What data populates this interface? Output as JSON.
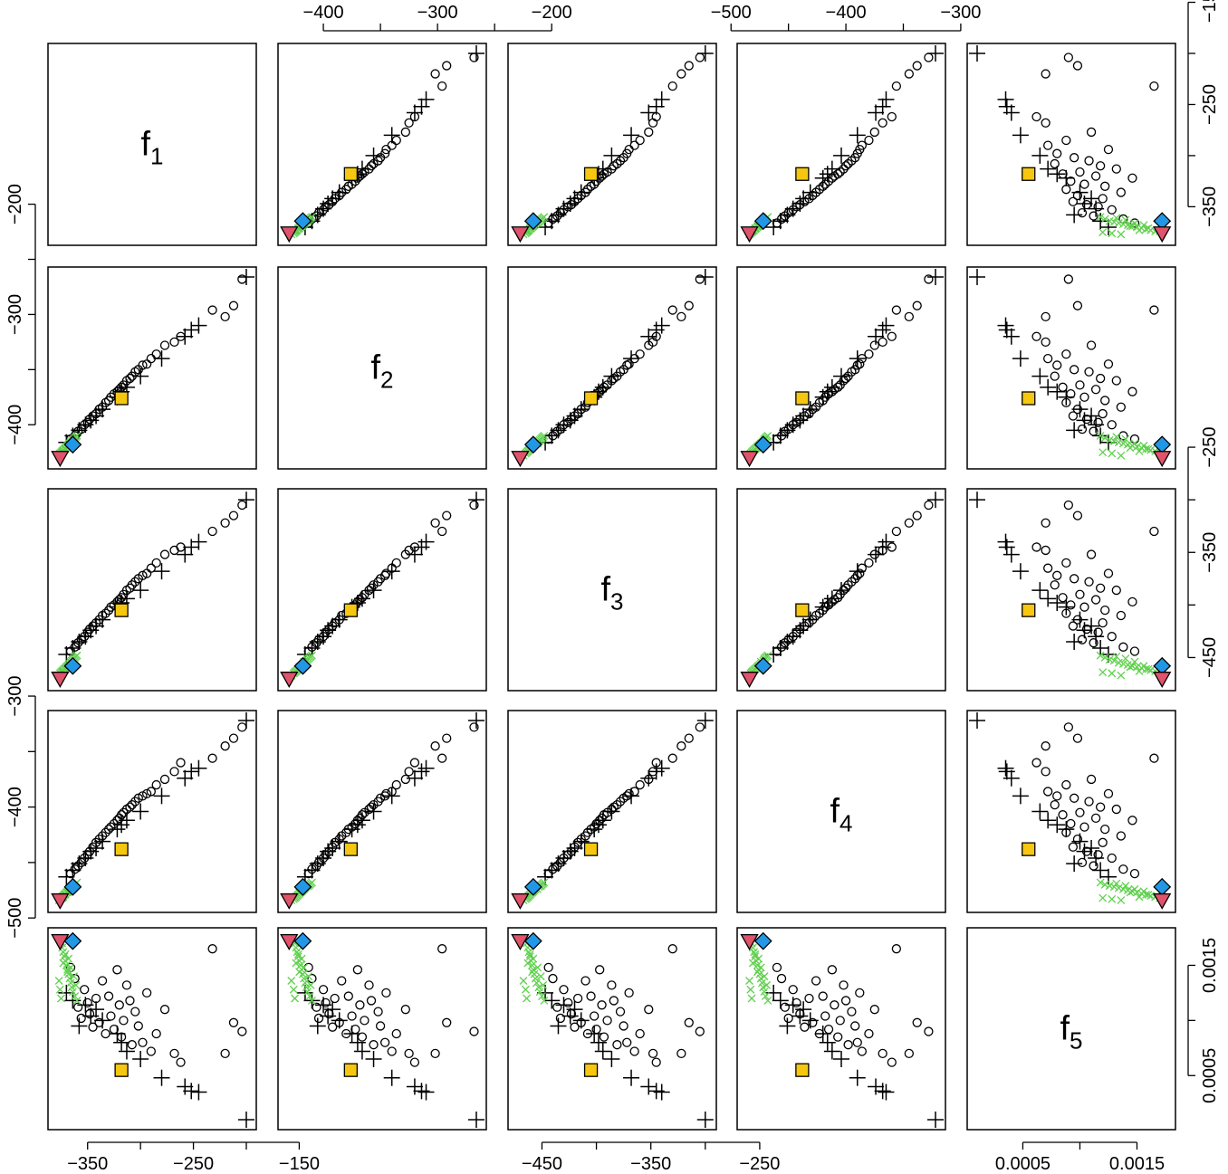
{
  "colors": {
    "frame": "#000000",
    "circle": "#000000",
    "plus": "#000000",
    "cross": "#61D04F",
    "square": "#F5C710",
    "diamond": "#2297E6",
    "triangle": "#DF536B"
  },
  "chart_data": {
    "type": "scatter",
    "variables": [
      {
        "name": "f",
        "sub": "1",
        "range": [
          -378,
          -200
        ],
        "ticks": [
          -350,
          -250,
          -150
        ],
        "tick_labels": [
          "−350",
          "−250",
          "−150"
        ],
        "ticks_minor": [
          -300,
          -200
        ]
      },
      {
        "name": "f",
        "sub": "2",
        "range": [
          -431,
          -266
        ],
        "ticks": [
          -400,
          -300,
          -200
        ],
        "tick_labels": [
          "−400",
          "−300",
          "−200"
        ],
        "ticks_minor": [
          -350,
          -250
        ]
      },
      {
        "name": "f",
        "sub": "3",
        "range": [
          -472,
          -299
        ],
        "ticks": [
          -450,
          -350,
          -250
        ],
        "tick_labels": [
          "−450",
          "−350",
          "−250"
        ],
        "ticks_minor": [
          -400,
          -300
        ]
      },
      {
        "name": "f",
        "sub": "4",
        "range": [
          -486,
          -322
        ],
        "ticks": [
          -500,
          -400,
          -300
        ],
        "tick_labels": [
          "−500",
          "−400",
          "−300"
        ],
        "ticks_minor": [
          -450,
          -350
        ]
      },
      {
        "name": "f",
        "sub": "5",
        "range": [
          0.0001,
          0.00175
        ],
        "ticks": [
          0.0005,
          0.0015
        ],
        "tick_labels": [
          "0.0005",
          "0.0015"
        ],
        "ticks_minor": [
          0.001
        ]
      }
    ],
    "x_axis_bottom": [
      0,
      2,
      4
    ],
    "x_axis_top": [
      1,
      3
    ],
    "y_axis_left": [
      1,
      3
    ],
    "y_axis_right": [
      0,
      2,
      4
    ],
    "series": [
      {
        "marker": "circle",
        "points": [
          [
            -204,
            -268,
            -305,
            -328,
            0.0009
          ],
          [
            -212,
            -292,
            -315,
            -338,
            0.00098
          ],
          [
            -220,
            -302,
            -322,
            -345,
            0.0007
          ],
          [
            -232,
            -296,
            -330,
            -356,
            0.00165
          ],
          [
            -262,
            -320,
            -345,
            -360,
            0.00062
          ],
          [
            -268,
            -325,
            -348,
            -368,
            0.0007
          ],
          [
            -277,
            -328,
            -352,
            -375,
            0.0011
          ],
          [
            -285,
            -336,
            -360,
            -380,
            0.00088
          ],
          [
            -290,
            -340,
            -365,
            -386,
            0.00072
          ],
          [
            -294,
            -345,
            -370,
            -388,
            0.00125
          ],
          [
            -298,
            -346,
            -372,
            -390,
            0.0008
          ],
          [
            -302,
            -350,
            -375,
            -392,
            0.00095
          ],
          [
            -305,
            -352,
            -378,
            -395,
            0.00108
          ],
          [
            -308,
            -356,
            -381,
            -398,
            0.00078
          ],
          [
            -310,
            -358,
            -384,
            -400,
            0.00118
          ],
          [
            -313,
            -360,
            -386,
            -402,
            0.00132
          ],
          [
            -316,
            -364,
            -390,
            -405,
            0.001
          ],
          [
            -318,
            -366,
            -393,
            -407,
            0.00085
          ],
          [
            -320,
            -368,
            -395,
            -410,
            0.00114
          ],
          [
            -322,
            -370,
            -397,
            -412,
            0.00146
          ],
          [
            -325,
            -372,
            -400,
            -415,
            0.00092
          ],
          [
            -328,
            -375,
            -402,
            -418,
            0.00104
          ],
          [
            -330,
            -378,
            -405,
            -420,
            0.00122
          ],
          [
            -333,
            -380,
            -408,
            -423,
            0.00088
          ],
          [
            -336,
            -384,
            -410,
            -426,
            0.00136
          ],
          [
            -339,
            -386,
            -414,
            -429,
            0.00098
          ],
          [
            -342,
            -390,
            -417,
            -432,
            0.0012
          ],
          [
            -345,
            -392,
            -420,
            -436,
            0.00094
          ],
          [
            -348,
            -395,
            -423,
            -440,
            0.00106
          ],
          [
            -350,
            -398,
            -426,
            -443,
            0.00116
          ],
          [
            -353,
            -400,
            -430,
            -446,
            0.00128
          ],
          [
            -356,
            -404,
            -433,
            -450,
            0.00102
          ],
          [
            -359,
            -406,
            -436,
            -453,
            0.00112
          ],
          [
            -362,
            -410,
            -440,
            -456,
            0.00138
          ],
          [
            -366,
            -413,
            -444,
            -460,
            0.00148
          ]
        ]
      },
      {
        "marker": "plus",
        "points": [
          [
            -200,
            -266,
            -300,
            -322,
            0.0001
          ],
          [
            -245,
            -310,
            -340,
            -365,
            0.00035
          ],
          [
            -252,
            -314,
            -345,
            -368,
            0.00036
          ],
          [
            -258,
            -320,
            -352,
            -374,
            0.0004
          ],
          [
            -280,
            -340,
            -368,
            -390,
            0.00048
          ],
          [
            -300,
            -356,
            -386,
            -404,
            0.00065
          ],
          [
            -313,
            -366,
            -394,
            -412,
            0.00072
          ],
          [
            -318,
            -370,
            -398,
            -416,
            0.0008
          ],
          [
            -322,
            -375,
            -402,
            -420,
            0.00088
          ],
          [
            -336,
            -386,
            -414,
            -431,
            0.001
          ],
          [
            -342,
            -392,
            -420,
            -437,
            0.0011
          ],
          [
            -347,
            -396,
            -424,
            -440,
            0.00104
          ],
          [
            -352,
            -400,
            -430,
            -446,
            0.00114
          ],
          [
            -358,
            -405,
            -435,
            -451,
            0.00095
          ],
          [
            -364,
            -410,
            -441,
            -457,
            0.00118
          ],
          [
            -370,
            -416,
            -447,
            -463,
            0.00125
          ]
        ]
      },
      {
        "marker": "cross",
        "points": [
          [
            -360,
            -410,
            -448,
            -468,
            0.00118
          ],
          [
            -362,
            -412,
            -450,
            -470,
            0.00122
          ],
          [
            -364,
            -414,
            -452,
            -471,
            0.00126
          ],
          [
            -365,
            -415,
            -453,
            -472,
            0.0013
          ],
          [
            -366,
            -416,
            -455,
            -473,
            0.00134
          ],
          [
            -367,
            -417,
            -456,
            -474,
            0.00138
          ],
          [
            -368,
            -418,
            -457,
            -475,
            0.00142
          ],
          [
            -369,
            -419,
            -458,
            -476,
            0.00146
          ],
          [
            -370,
            -420,
            -459,
            -477,
            0.0015
          ],
          [
            -371,
            -421,
            -460,
            -478,
            0.00154
          ],
          [
            -372,
            -422,
            -461,
            -479,
            0.00158
          ],
          [
            -373,
            -423,
            -462,
            -480,
            0.00162
          ],
          [
            -374,
            -424,
            -463,
            -481,
            0.00166
          ],
          [
            -375,
            -425,
            -464,
            -482,
            0.0012
          ],
          [
            -376,
            -426,
            -465,
            -483,
            0.00128
          ],
          [
            -377,
            -428,
            -467,
            -484,
            0.00136
          ],
          [
            -363,
            -413,
            -451,
            -471,
            0.0014
          ],
          [
            -366,
            -417,
            -454,
            -474,
            0.00148
          ],
          [
            -368,
            -419,
            -458,
            -476,
            0.00156
          ],
          [
            -371,
            -422,
            -461,
            -479,
            0.0016
          ],
          [
            -374,
            -425,
            -464,
            -482,
            0.0017
          ],
          [
            -361,
            -411,
            -449,
            -469,
            0.00132
          ],
          [
            -369,
            -421,
            -459,
            -477,
            0.00144
          ],
          [
            -373,
            -424,
            -463,
            -481,
            0.00152
          ]
        ]
      },
      {
        "marker": "square",
        "points": [
          [
            -318,
            -376,
            -405,
            -438,
            0.00055
          ]
        ]
      },
      {
        "marker": "diamond",
        "points": [
          [
            -364,
            -418,
            -458,
            -472,
            0.00172
          ]
        ]
      },
      {
        "marker": "triangle",
        "points": [
          [
            -376,
            -430,
            -470,
            -484,
            0.00172
          ]
        ]
      }
    ]
  }
}
